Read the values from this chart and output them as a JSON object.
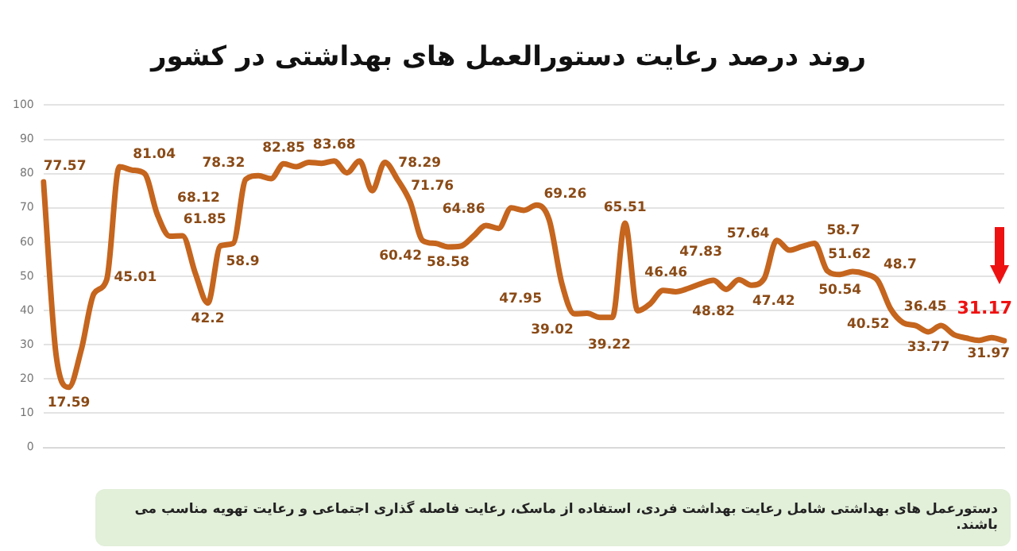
{
  "chart_data": {
    "type": "line",
    "title": "روند درصد رعایت دستورالعمل های بهداشتی در کشور",
    "categories": [
      null,
      null,
      null,
      null,
      null,
      null,
      null,
      null,
      null,
      null,
      null,
      null,
      null,
      null,
      null,
      null,
      null,
      null,
      null,
      null,
      null,
      null,
      null,
      null,
      null,
      null,
      null,
      null,
      null,
      null,
      null,
      null,
      null,
      null,
      null,
      null,
      null,
      null,
      null,
      null,
      null,
      null,
      null,
      null,
      null,
      null,
      null,
      null,
      null,
      null,
      null,
      null,
      null,
      null,
      null,
      null,
      null,
      null,
      null,
      null,
      null,
      null,
      null,
      null,
      null,
      null,
      null,
      null,
      null,
      null,
      null,
      null,
      null,
      null,
      null,
      null,
      null
    ],
    "series": [
      {
        "color": "#c5651e",
        "values": [
          77.57,
          27,
          17.59,
          28.7,
          45.01,
          49,
          82,
          81.04,
          80,
          68.12,
          61.7,
          61.85,
          51,
          42.2,
          58.9,
          59.6,
          78.32,
          79.4,
          78.5,
          82.85,
          82,
          83.3,
          83,
          83.68,
          80.2,
          83.7,
          75,
          83.3,
          78.29,
          71.76,
          60.42,
          59.6,
          58.58,
          58.8,
          61.7,
          64.86,
          64,
          70,
          69.26,
          70.8,
          66.5,
          47.95,
          39.02,
          39.22,
          38,
          38,
          65.51,
          39.9,
          42,
          45.9,
          45.5,
          46.46,
          47.83,
          48.82,
          46.2,
          49,
          47.42,
          49.3,
          60.5,
          57.64,
          58.7,
          59.6,
          51.62,
          50.54,
          51.4,
          50.7,
          48.7,
          40.52,
          36.45,
          35.6,
          33.77,
          35.6,
          33,
          31.97,
          31.3,
          32.1,
          31.17
        ],
        "value_labels": [
          "77.57",
          null,
          "17.59",
          null,
          "45.01",
          null,
          null,
          "81.04",
          null,
          "68.12",
          null,
          "61.85",
          null,
          "42.2",
          "58.9",
          null,
          "78.32",
          null,
          null,
          "82.85",
          null,
          null,
          null,
          "83.68",
          null,
          null,
          null,
          null,
          "78.29",
          "71.76",
          "60.42",
          null,
          "58.58",
          null,
          null,
          "64.86",
          null,
          null,
          "69.26",
          null,
          null,
          "47.95",
          "39.02",
          "39.22",
          null,
          null,
          "65.51",
          null,
          null,
          null,
          null,
          "46.46",
          "47.83",
          "48.82",
          null,
          null,
          "47.42",
          null,
          null,
          "57.64",
          "58.7",
          null,
          "51.62",
          "50.54",
          null,
          null,
          "48.7",
          "40.52",
          "36.45",
          null,
          "33.77",
          null,
          null,
          "31.97",
          null,
          null,
          "31.17"
        ]
      }
    ],
    "ylim": [
      0,
      100
    ],
    "yticks": [
      0,
      10,
      20,
      30,
      40,
      50,
      60,
      70,
      80,
      90,
      100
    ],
    "grid": "y",
    "legend": false,
    "marker": "none",
    "line_style": "solid",
    "tick_labels": "y",
    "annotations": [
      "دستورعمل های بهداشتی شامل رعایت بهداشت فردی، استفاده از ماسک، رعایت فاصله گذاری اجتماعی و رعایت تهویه مناسب می باشند."
    ]
  }
}
